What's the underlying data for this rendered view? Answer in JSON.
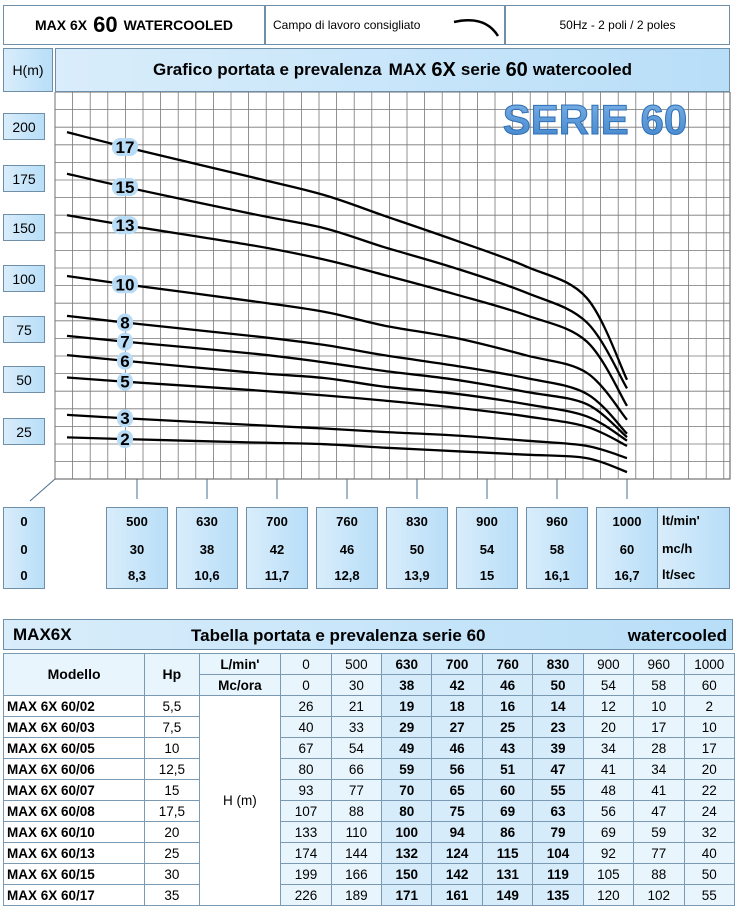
{
  "header": {
    "model_prefix": "MAX 6X",
    "series_number": "60",
    "model_suffix": "WATERCOOLED",
    "recommended_range_label": "Campo di lavoro consigliato",
    "frequency": "50Hz - 2 poli / 2 poles"
  },
  "chart_data": {
    "type": "line",
    "title_prefix": "Grafico portata e prevalenza",
    "title_model": "MAX",
    "title_model_bold": "6X",
    "title_series_word": "serie",
    "title_series_num": "60",
    "title_suffix": "watercooled",
    "watermark": "SERIE 60",
    "ylabel": "H(m)",
    "ylim": [
      0,
      210
    ],
    "yticks": [
      "200",
      "175",
      "150",
      "100",
      "75",
      "50",
      "25"
    ],
    "grid": true,
    "x": [
      500,
      630,
      700,
      760,
      830,
      900,
      960,
      1000
    ],
    "x_units_rows": [
      {
        "zero": "0",
        "values": [
          "500",
          "630",
          "700",
          "760",
          "830",
          "900",
          "960",
          "1000"
        ],
        "unit": "lt/min'"
      },
      {
        "zero": "0",
        "values": [
          "30",
          "38",
          "42",
          "46",
          "50",
          "54",
          "58",
          "60"
        ],
        "unit": "mc/h"
      },
      {
        "zero": "0",
        "values": [
          "8,3",
          "10,6",
          "11,7",
          "12,8",
          "13,9",
          "15",
          "16,1",
          "16,7"
        ],
        "unit": "lt/sec"
      }
    ],
    "series": [
      {
        "name": "17",
        "values": [
          189,
          171,
          161,
          149,
          135,
          120,
          102,
          55
        ]
      },
      {
        "name": "15",
        "values": [
          166,
          150,
          142,
          131,
          119,
          105,
          88,
          50
        ]
      },
      {
        "name": "13",
        "values": [
          144,
          132,
          124,
          115,
          104,
          92,
          77,
          40
        ]
      },
      {
        "name": "10",
        "values": [
          110,
          100,
          94,
          86,
          79,
          69,
          59,
          32
        ]
      },
      {
        "name": "8",
        "values": [
          88,
          80,
          75,
          69,
          63,
          56,
          47,
          24
        ]
      },
      {
        "name": "7",
        "values": [
          77,
          70,
          65,
          60,
          55,
          48,
          41,
          22
        ]
      },
      {
        "name": "6",
        "values": [
          66,
          59,
          56,
          51,
          47,
          41,
          34,
          20
        ]
      },
      {
        "name": "5",
        "values": [
          54,
          49,
          46,
          43,
          39,
          34,
          28,
          17
        ]
      },
      {
        "name": "3",
        "values": [
          33,
          29,
          27,
          25,
          23,
          20,
          17,
          10
        ]
      },
      {
        "name": "2",
        "values": [
          21,
          19,
          18,
          16,
          14,
          12,
          10,
          2
        ]
      }
    ]
  },
  "table": {
    "brand": "MAX6X",
    "title": "Tabella portata e prevalenza serie 60",
    "subtitle": "watercooled",
    "col_model": "Modello",
    "col_hp": "Hp",
    "unit_lmin": "L/min'",
    "unit_mcora": "Mc/ora",
    "h_label": "H (m)",
    "lmin": [
      "0",
      "500",
      "630",
      "700",
      "760",
      "830",
      "900",
      "960",
      "1000"
    ],
    "mcora": [
      "0",
      "30",
      "38",
      "42",
      "46",
      "50",
      "54",
      "58",
      "60"
    ],
    "rows": [
      {
        "model": "MAX 6X 60/02",
        "hp": "5,5",
        "h": [
          "26",
          "21",
          "19",
          "18",
          "16",
          "14",
          "12",
          "10",
          "2"
        ]
      },
      {
        "model": "MAX 6X 60/03",
        "hp": "7,5",
        "h": [
          "40",
          "33",
          "29",
          "27",
          "25",
          "23",
          "20",
          "17",
          "10"
        ]
      },
      {
        "model": "MAX 6X 60/05",
        "hp": "10",
        "h": [
          "67",
          "54",
          "49",
          "46",
          "43",
          "39",
          "34",
          "28",
          "17"
        ]
      },
      {
        "model": "MAX 6X 60/06",
        "hp": "12,5",
        "h": [
          "80",
          "66",
          "59",
          "56",
          "51",
          "47",
          "41",
          "34",
          "20"
        ]
      },
      {
        "model": "MAX 6X 60/07",
        "hp": "15",
        "h": [
          "93",
          "77",
          "70",
          "65",
          "60",
          "55",
          "48",
          "41",
          "22"
        ]
      },
      {
        "model": "MAX 6X 60/08",
        "hp": "17,5",
        "h": [
          "107",
          "88",
          "80",
          "75",
          "69",
          "63",
          "56",
          "47",
          "24"
        ]
      },
      {
        "model": "MAX 6X 60/10",
        "hp": "20",
        "h": [
          "133",
          "110",
          "100",
          "94",
          "86",
          "79",
          "69",
          "59",
          "32"
        ]
      },
      {
        "model": "MAX 6X 60/13",
        "hp": "25",
        "h": [
          "174",
          "144",
          "132",
          "124",
          "115",
          "104",
          "92",
          "77",
          "40"
        ]
      },
      {
        "model": "MAX 6X 60/15",
        "hp": "30",
        "h": [
          "199",
          "166",
          "150",
          "142",
          "131",
          "119",
          "105",
          "88",
          "50"
        ]
      },
      {
        "model": "MAX 6X 60/17",
        "hp": "35",
        "h": [
          "226",
          "189",
          "171",
          "161",
          "149",
          "135",
          "120",
          "102",
          "55"
        ]
      }
    ]
  }
}
